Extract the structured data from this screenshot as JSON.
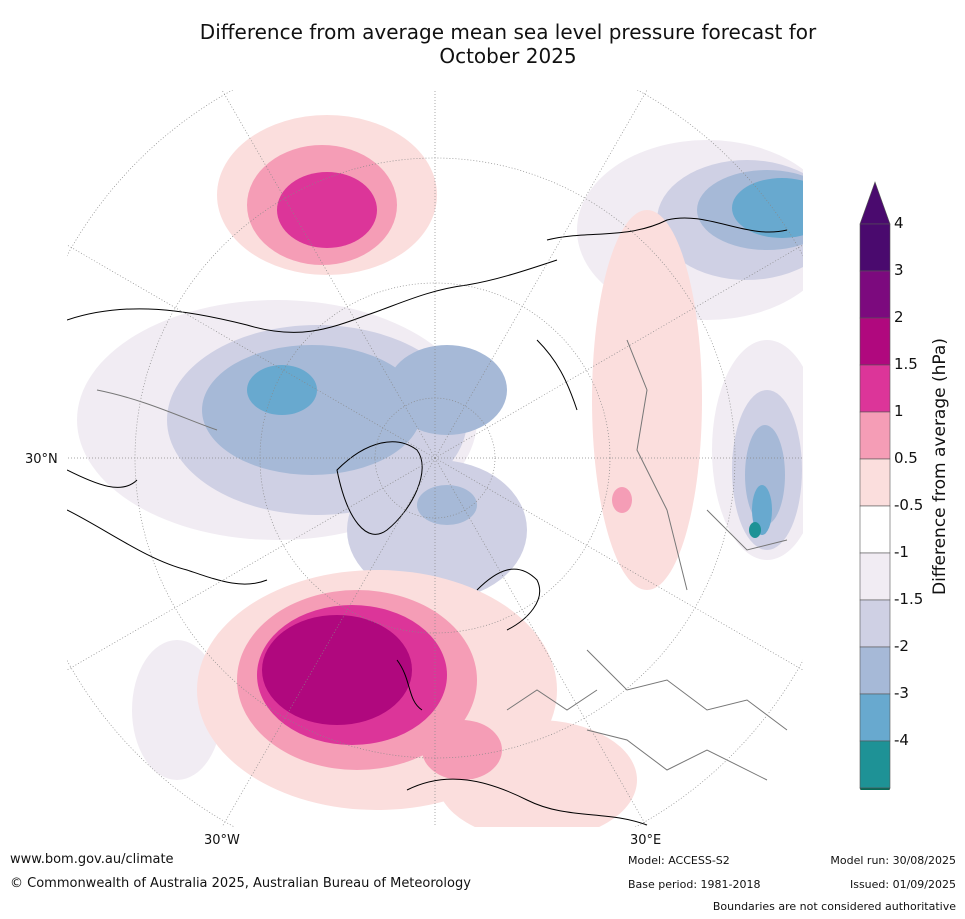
{
  "title_line1": "Difference from average mean sea level pressure forecast for",
  "title_line2": "October 2025",
  "axis": {
    "lat_label": "30°N",
    "lon_w_label": "30°W",
    "lon_e_label": "30°E"
  },
  "colorbar": {
    "title": "Difference from average (hPa)",
    "bins": [
      {
        "label": "4",
        "color": "#4a0a6e"
      },
      {
        "label": "3",
        "color": "#7c0a7e"
      },
      {
        "label": "2",
        "color": "#b0087e"
      },
      {
        "label": "1.5",
        "color": "#dc3599"
      },
      {
        "label": "1",
        "color": "#f59db6"
      },
      {
        "label": "0.5",
        "color": "#fbdedd"
      },
      {
        "label": "-0.5",
        "color": "#ffffff"
      },
      {
        "label": "-1",
        "color": "#f1ecf3"
      },
      {
        "label": "-1.5",
        "color": "#cfd0e4"
      },
      {
        "label": "-2",
        "color": "#a6b9d7"
      },
      {
        "label": "-3",
        "color": "#68a9cf"
      },
      {
        "label": "-4",
        "color": "#1e9296"
      }
    ],
    "under_color": "#086a58",
    "over_color": "#4a0a6e"
  },
  "footer": {
    "website": "www.bom.gov.au/climate",
    "copyright": "© Commonwealth of Australia 2025, Australian Bureau of Meteorology",
    "model": "Model: ACCESS-S2",
    "base_period": "Base period: 1981-2018",
    "model_run": "Model run: 30/08/2025",
    "issued": "Issued: 01/09/2025",
    "disclaimer": "Boundaries are not considered authoritative"
  }
}
